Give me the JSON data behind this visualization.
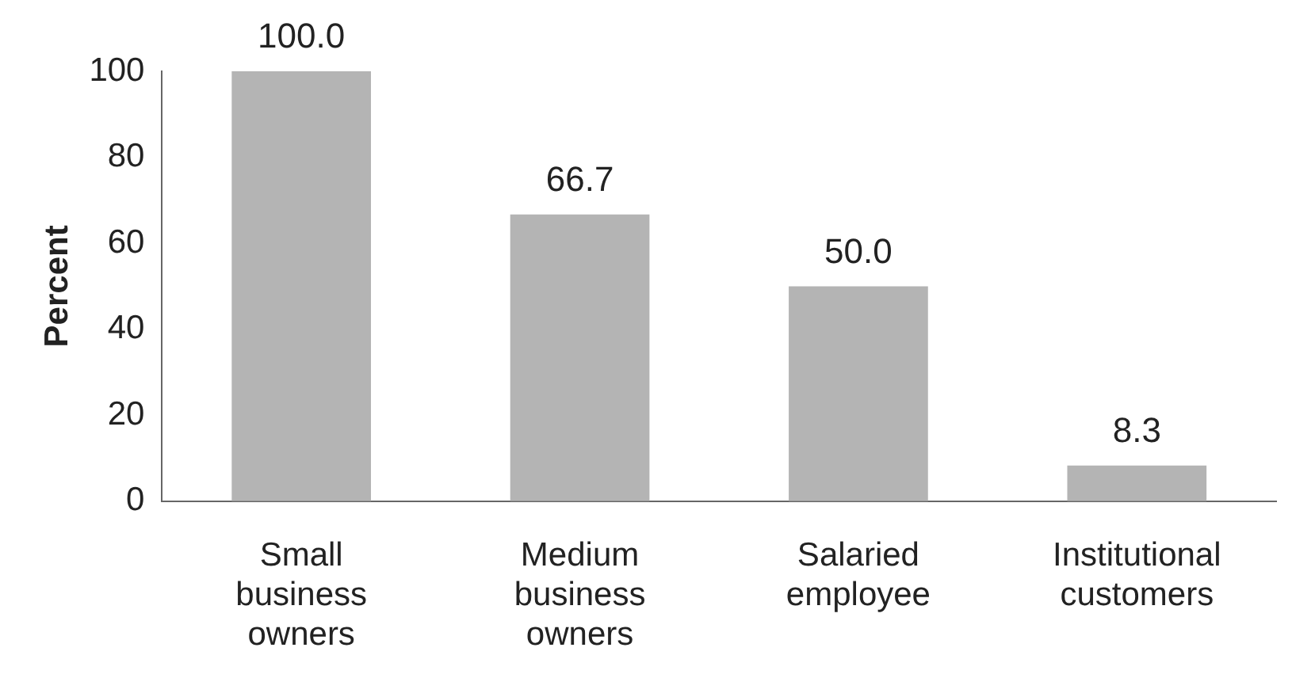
{
  "chart_data": {
    "type": "bar",
    "ylabel": "Percent",
    "categories": [
      "Small business owners",
      "Medium business owners",
      "Salaried employee",
      "Institutional customers"
    ],
    "values": [
      100,
      66.7,
      50,
      8.3
    ],
    "value_labels": [
      "100.0",
      "66.7",
      "50.0",
      "8.3"
    ],
    "color": "#b4b4b4",
    "ylim": [
      0,
      100
    ],
    "yticks": [
      0,
      20,
      40,
      60,
      80,
      100
    ],
    "grid": false,
    "legend": false
  }
}
